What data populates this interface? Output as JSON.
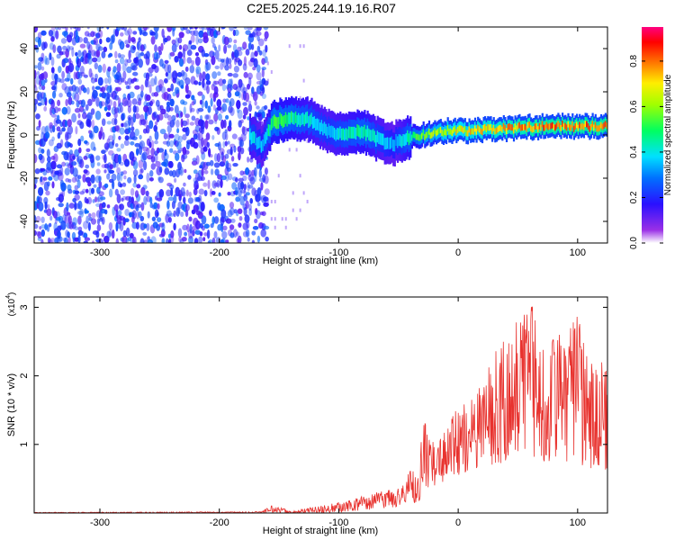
{
  "figure_title": "C2E5.2025.244.19.16.R07",
  "colors": {
    "axis": "#000000",
    "snr_line": "#e8322e",
    "background": "#ffffff"
  },
  "chart_data": [
    {
      "type": "heatmap",
      "title": "C2E5.2025.244.19.16.R07",
      "xlabel": "Height of straight line (km)",
      "ylabel": "Frequency (Hz)",
      "xlim": [
        -355,
        125
      ],
      "ylim": [
        -50,
        50
      ],
      "xticks": [
        -300,
        -200,
        -100,
        0,
        100
      ],
      "xtick_labels": [
        "-300",
        "-200",
        "-100",
        "0",
        "100"
      ],
      "yticks": [
        -40,
        -20,
        0,
        20,
        40
      ],
      "ytick_labels": [
        "-40",
        "-20",
        "0",
        "20",
        "40"
      ],
      "colorbar": {
        "label": "Normalized spectral amplitude",
        "range": [
          0,
          0.95
        ],
        "ticks": [
          0.0,
          0.2,
          0.4,
          0.6,
          0.8
        ],
        "tick_labels": [
          "0.0",
          "0.2",
          "0.4",
          "0.6",
          "0.8"
        ],
        "colormap": "rainbow (violet-blue-cyan-green-yellow-red-magenta)"
      },
      "signal_ridge": {
        "x": [
          -175,
          -165,
          -155,
          -140,
          -125,
          -110,
          -95,
          -80,
          -65,
          -55,
          -45,
          -30,
          -10,
          10,
          40,
          70,
          100,
          125
        ],
        "freq": [
          0,
          -5,
          6,
          8,
          7,
          2,
          0,
          2,
          -3,
          -4,
          -2,
          0,
          2,
          2,
          3,
          4,
          4,
          4
        ],
        "amplitude": [
          0.45,
          0.35,
          0.55,
          0.5,
          0.45,
          0.4,
          0.45,
          0.5,
          0.4,
          0.35,
          0.45,
          0.6,
          0.7,
          0.75,
          0.8,
          0.85,
          0.85,
          0.85
        ]
      },
      "noise_region": {
        "x_range": [
          -355,
          -160
        ],
        "amplitude": "0.0-0.2"
      }
    },
    {
      "type": "line",
      "xlabel": "Height of straight line (km)",
      "ylabel": "SNR (10 * v/v)",
      "y_scale_label": "(x10",
      "y_scale_exponent": "4",
      "y_scale_suffix": ")",
      "xlim": [
        -355,
        125
      ],
      "ylim": [
        0,
        3.15
      ],
      "xticks": [
        -300,
        -200,
        -100,
        0,
        100
      ],
      "xtick_labels": [
        "-300",
        "-200",
        "-100",
        "0",
        "100"
      ],
      "yticks": [
        1,
        2,
        3
      ],
      "ytick_labels": [
        "1",
        "2",
        "3"
      ],
      "series": [
        {
          "name": "SNR",
          "envelope_x": [
            -355,
            -165,
            -155,
            -140,
            -110,
            -90,
            -70,
            -50,
            -40,
            -33,
            -30,
            -20,
            -10,
            0,
            10,
            20,
            30,
            40,
            50,
            60,
            70,
            80,
            90,
            100,
            110,
            125
          ],
          "envelope_y": [
            0.01,
            0.02,
            0.12,
            0.03,
            0.12,
            0.2,
            0.3,
            0.38,
            0.62,
            0.58,
            1.4,
            1.0,
            1.25,
            1.55,
            1.7,
            2.0,
            2.4,
            2.7,
            2.85,
            3.1,
            2.7,
            2.6,
            2.6,
            2.9,
            2.2,
            2.2
          ],
          "floor_y": [
            0,
            0,
            0,
            0,
            0,
            0.02,
            0.05,
            0.08,
            0.12,
            0.15,
            0.35,
            0.4,
            0.45,
            0.55,
            0.6,
            0.65,
            0.7,
            0.75,
            0.8,
            0.8,
            0.75,
            0.75,
            0.7,
            0.7,
            0.65,
            0.6
          ]
        }
      ]
    }
  ]
}
